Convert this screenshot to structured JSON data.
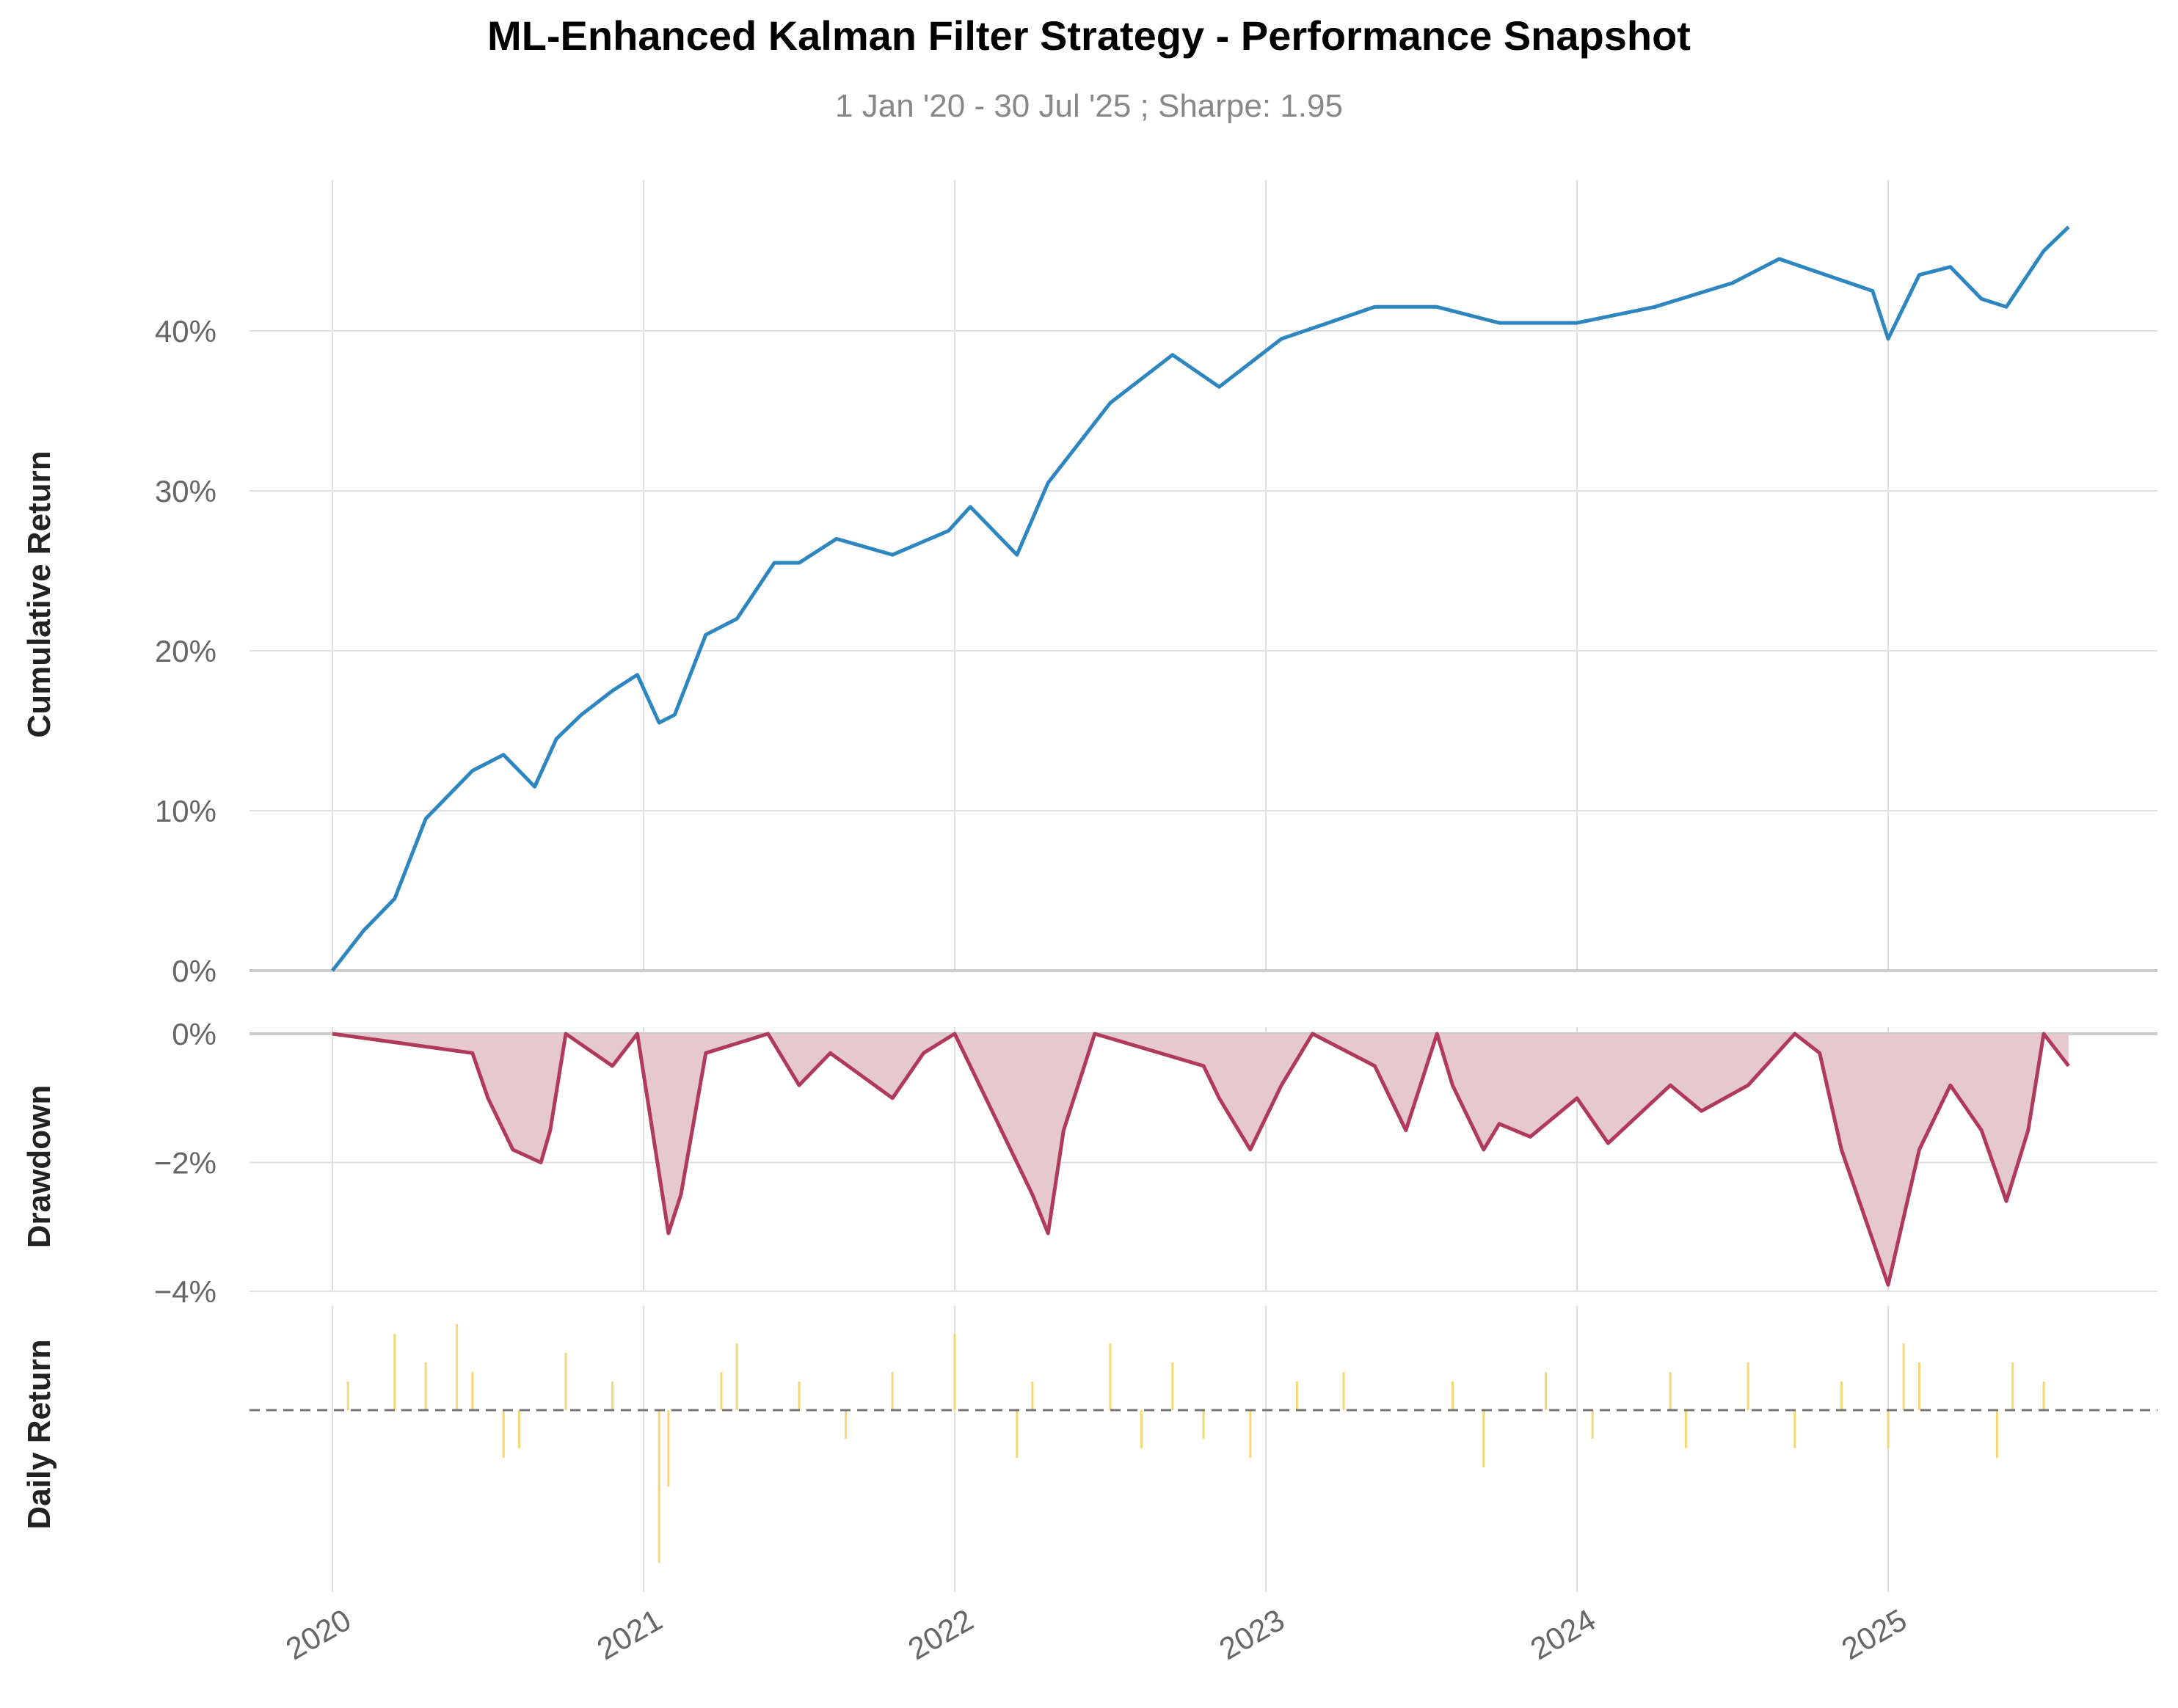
{
  "title": "ML-Enhanced Kalman Filter Strategy - Performance Snapshot",
  "subtitle": "1 Jan '20 - 30 Jul '25 ;  Sharpe: 1.95",
  "colors": {
    "cumulative": "#2e86c1",
    "drawdown": "#b03a5b",
    "drawdown_fill": "#e6c8d0",
    "daily": "#f7d774",
    "grid": "#e0e0e0",
    "zero": "#cccccc"
  },
  "chart_data": [
    {
      "type": "line",
      "panel": "cumulative",
      "ylabel": "Cumulative Return",
      "x_ticks": [
        "2020",
        "2021",
        "2022",
        "2023",
        "2024",
        "2025"
      ],
      "y_ticks": [
        "0%",
        "10%",
        "20%",
        "30%",
        "40%"
      ],
      "ylim": [
        -1.5,
        49
      ],
      "x": [
        2020.0,
        2020.1,
        2020.2,
        2020.3,
        2020.45,
        2020.55,
        2020.65,
        2020.72,
        2020.8,
        2020.9,
        2020.98,
        2021.05,
        2021.1,
        2021.2,
        2021.3,
        2021.42,
        2021.5,
        2021.62,
        2021.8,
        2021.98,
        2022.05,
        2022.2,
        2022.3,
        2022.5,
        2022.7,
        2022.85,
        2022.95,
        2023.05,
        2023.2,
        2023.35,
        2023.55,
        2023.75,
        2023.85,
        2024.0,
        2024.25,
        2024.5,
        2024.65,
        2024.8,
        2024.95,
        2025.0,
        2025.1,
        2025.2,
        2025.3,
        2025.38,
        2025.5,
        2025.58
      ],
      "y": [
        0,
        2.5,
        4.5,
        9.5,
        12.5,
        13.5,
        11.5,
        14.5,
        16,
        17.5,
        18.5,
        15.5,
        16,
        21,
        22,
        25.5,
        25.5,
        27,
        26,
        27.5,
        29,
        26,
        30.5,
        35.5,
        38.5,
        36.5,
        38,
        39.5,
        40.5,
        41.5,
        41.5,
        40.5,
        40.5,
        40.5,
        41.5,
        43,
        44.5,
        43.5,
        42.5,
        39.5,
        43.5,
        44,
        42,
        41.5,
        45,
        46.5
      ]
    },
    {
      "type": "area",
      "panel": "drawdown",
      "ylabel": "Drawdown",
      "y_ticks": [
        "0%",
        "−2%",
        "−4%"
      ],
      "ylim": [
        -4,
        0
      ],
      "x": [
        2020.0,
        2020.45,
        2020.5,
        2020.58,
        2020.67,
        2020.7,
        2020.75,
        2020.9,
        2020.98,
        2021.08,
        2021.12,
        2021.2,
        2021.4,
        2021.5,
        2021.6,
        2021.8,
        2021.9,
        2022.0,
        2022.15,
        2022.25,
        2022.3,
        2022.35,
        2022.45,
        2022.8,
        2022.85,
        2022.95,
        2023.05,
        2023.15,
        2023.35,
        2023.45,
        2023.55,
        2023.6,
        2023.7,
        2023.75,
        2023.85,
        2024.0,
        2024.1,
        2024.3,
        2024.4,
        2024.55,
        2024.7,
        2024.78,
        2024.85,
        2025.0,
        2025.1,
        2025.2,
        2025.3,
        2025.38,
        2025.45,
        2025.5,
        2025.58
      ],
      "y": [
        0,
        -0.3,
        -1.0,
        -1.8,
        -2.0,
        -1.5,
        0,
        -0.5,
        0,
        -3.1,
        -2.5,
        -0.3,
        0,
        -0.8,
        -0.3,
        -1.0,
        -0.3,
        0,
        -1.5,
        -2.5,
        -3.1,
        -1.5,
        0,
        -0.5,
        -1.0,
        -1.8,
        -0.8,
        0,
        -0.5,
        -1.5,
        0,
        -0.8,
        -1.8,
        -1.4,
        -1.6,
        -1.0,
        -1.7,
        -0.8,
        -1.2,
        -0.8,
        0,
        -0.3,
        -1.8,
        -3.9,
        -1.8,
        -0.8,
        -1.5,
        -2.6,
        -1.5,
        0,
        -0.5
      ]
    },
    {
      "type": "bar",
      "panel": "daily",
      "ylabel": "Daily Return",
      "x": [
        2020.05,
        2020.2,
        2020.3,
        2020.4,
        2020.45,
        2020.55,
        2020.6,
        2020.75,
        2020.9,
        2021.05,
        2021.08,
        2021.25,
        2021.3,
        2021.5,
        2021.65,
        2021.8,
        2022.0,
        2022.2,
        2022.25,
        2022.5,
        2022.6,
        2022.7,
        2022.8,
        2022.95,
        2023.1,
        2023.25,
        2023.6,
        2023.7,
        2023.9,
        2024.05,
        2024.3,
        2024.35,
        2024.55,
        2024.7,
        2024.85,
        2025.0,
        2025.05,
        2025.1,
        2025.35,
        2025.4,
        2025.5
      ],
      "values": [
        0.3,
        0.8,
        0.5,
        0.9,
        0.4,
        -0.5,
        -0.4,
        0.6,
        0.3,
        -1.6,
        -0.8,
        0.4,
        0.7,
        0.3,
        -0.3,
        0.4,
        0.8,
        -0.5,
        0.3,
        0.7,
        -0.4,
        0.5,
        -0.3,
        -0.5,
        0.3,
        0.4,
        0.3,
        -0.6,
        0.4,
        -0.3,
        0.4,
        -0.4,
        0.5,
        -0.4,
        0.3,
        -0.4,
        0.7,
        0.5,
        -0.5,
        0.5,
        0.3
      ]
    }
  ]
}
